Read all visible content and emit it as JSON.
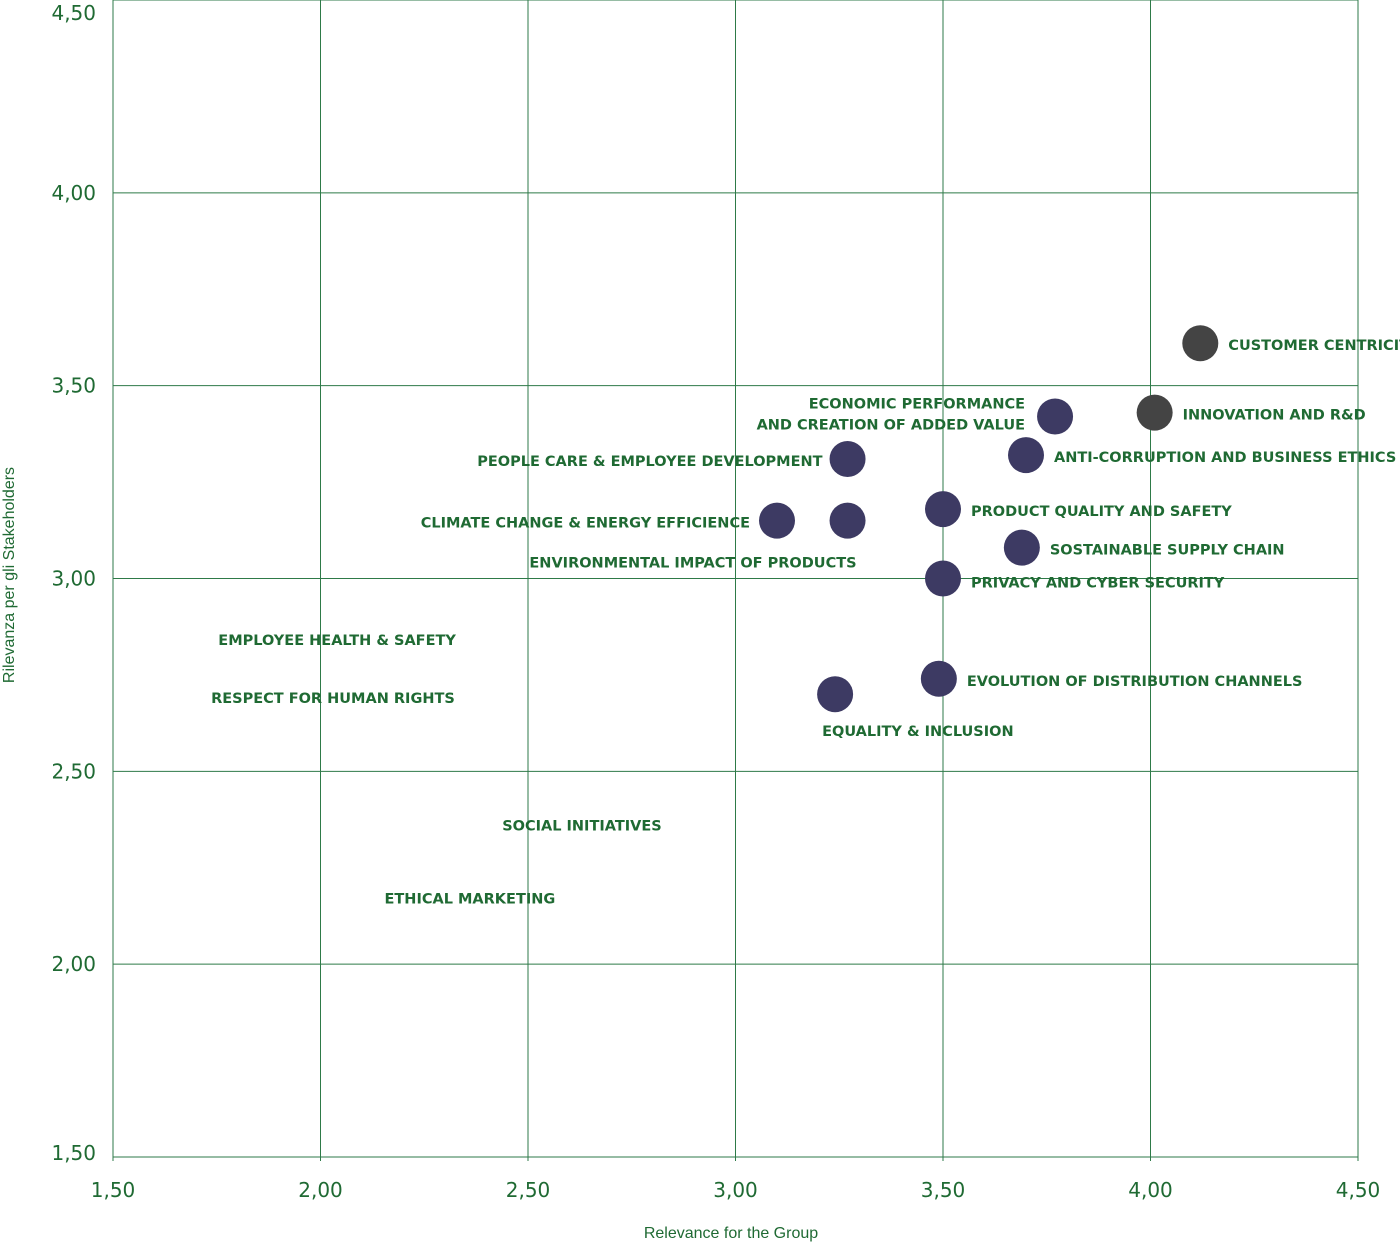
{
  "chart_data": {
    "type": "scatter",
    "xlabel": "Relevance for the Group",
    "ylabel": "Rilevanza per gli Stakeholders",
    "xlim": [
      1.5,
      4.5
    ],
    "ylim": [
      1.5,
      4.5
    ],
    "x_ticks": [
      "1,50",
      "2,00",
      "2,50",
      "3,00",
      "3,50",
      "4,00",
      "4,50"
    ],
    "y_ticks": [
      "1,50",
      "2,00",
      "2,50",
      "3,00",
      "3,50",
      "4,00",
      "4,50"
    ],
    "grid": true,
    "colors": {
      "primary": "#3d3a63",
      "highlight": "#444444",
      "text": "#1f6a33"
    },
    "points": [
      {
        "name": "CUSTOMER CENTRICITY",
        "x": 4.12,
        "y": 3.61,
        "color": "#444444",
        "marker": true
      },
      {
        "name": "INNOVATION AND R&D",
        "x": 4.01,
        "y": 3.43,
        "color": "#444444",
        "marker": true
      },
      {
        "name": "ECONOMIC PERFORMANCE AND CREATION OF ADDED VALUE",
        "x": 3.77,
        "y": 3.42,
        "color": "#3d3a63",
        "marker": true
      },
      {
        "name": "ANTI-CORRUPTION AND BUSINESS ETHICS",
        "x": 3.7,
        "y": 3.32,
        "color": "#3d3a63",
        "marker": true
      },
      {
        "name": "PEOPLE CARE & EMPLOYEE DEVELOPMENT",
        "x": 3.27,
        "y": 3.31,
        "color": "#3d3a63",
        "marker": true
      },
      {
        "name": "PRODUCT QUALITY AND SAFETY",
        "x": 3.5,
        "y": 3.18,
        "color": "#3d3a63",
        "marker": true
      },
      {
        "name": "CLIMATE CHANGE & ENERGY EFFICIENCE",
        "x": 3.1,
        "y": 3.15,
        "color": "#3d3a63",
        "marker": true
      },
      {
        "name": "ENVIRONMENTAL IMPACT OF PRODUCTS",
        "x": 3.27,
        "y": 3.15,
        "color": "#3d3a63",
        "marker": true
      },
      {
        "name": "SOSTAINABLE SUPPLY CHAIN",
        "x": 3.69,
        "y": 3.08,
        "color": "#3d3a63",
        "marker": true
      },
      {
        "name": "PRIVACY AND CYBER SECURITY",
        "x": 3.5,
        "y": 3.0,
        "color": "#3d3a63",
        "marker": true
      },
      {
        "name": "EVOLUTION OF DISTRIBUTION CHANNELS",
        "x": 3.49,
        "y": 2.74,
        "color": "#3d3a63",
        "marker": true
      },
      {
        "name": "EQUALITY & INCLUSION",
        "x": 3.24,
        "y": 2.7,
        "color": "#3d3a63",
        "marker": true
      },
      {
        "name": "EMPLOYEE HEALTH & SAFETY",
        "x": 2.04,
        "y": 2.84,
        "color": "#3d3a63",
        "marker": false
      },
      {
        "name": "RESPECT FOR HUMAN RIGHTS",
        "x": 2.03,
        "y": 2.69,
        "color": "#3d3a63",
        "marker": false
      },
      {
        "name": "SOCIAL INITIATIVES",
        "x": 2.63,
        "y": 2.36,
        "color": "#3d3a63",
        "marker": false
      },
      {
        "name": "ETHICAL MARKETING",
        "x": 2.36,
        "y": 2.17,
        "color": "#3d3a63",
        "marker": false
      }
    ]
  }
}
